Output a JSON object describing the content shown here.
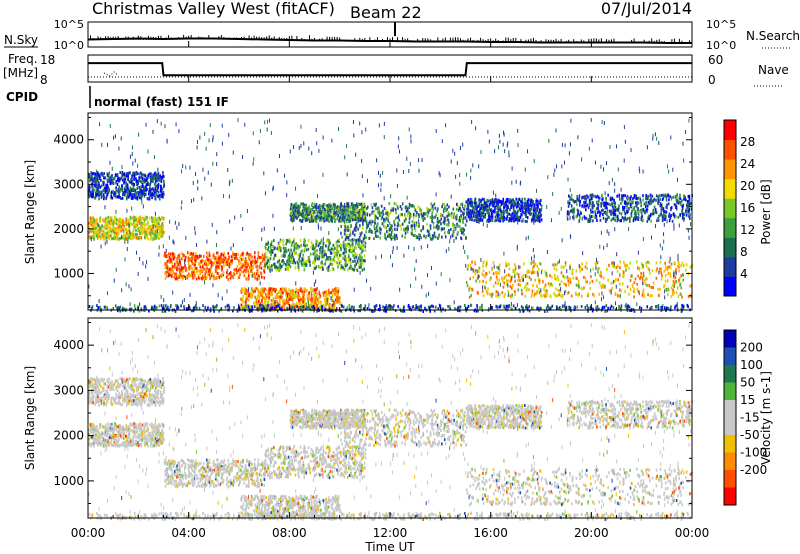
{
  "header": {
    "station": "Christmas Valley West (fitACF)",
    "beam": "Beam 22",
    "date": "07/Jul/2014"
  },
  "labels": {
    "nsky": "N.Sky",
    "nsearch": "N.Search",
    "freq_line1": "Freq.",
    "freq_line2": "[MHz]",
    "nave": "Nave",
    "cpid": "CPID",
    "cpid_value": "normal (fast) 151 IF",
    "noise_tick_hi": "10^5",
    "noise_tick_lo": "10^0",
    "freq_tick_hi": "18",
    "freq_tick_lo": "8",
    "nave_tick_hi": "60",
    "nave_tick_lo": "0"
  },
  "chart_data": [
    {
      "type": "line",
      "panel": "noise",
      "x": [
        0,
        1,
        2,
        3,
        4,
        5,
        6,
        7,
        8,
        9,
        10,
        11,
        12,
        13,
        14,
        15,
        16,
        17,
        18,
        19,
        20,
        21,
        22,
        23,
        24
      ],
      "series": [
        {
          "values": [
            1.5,
            1.6,
            1.7,
            1.6,
            1.7,
            1.7,
            1.6,
            1.5,
            1.4,
            1.3,
            1.3,
            1.2,
            1.2,
            1.1,
            1.1,
            1.1,
            1.0,
            1.0,
            0.9,
            0.9,
            0.9,
            0.9,
            0.9,
            0.8,
            0.8
          ]
        }
      ],
      "ylim": [
        0,
        5
      ]
    },
    {
      "type": "line",
      "panel": "frequency",
      "x": [
        0,
        2.95,
        3.0,
        15.0,
        15.05,
        24
      ],
      "series": [
        {
          "name": "Freq",
          "values": [
            15,
            15,
            10.5,
            10.5,
            15,
            15
          ]
        },
        {
          "name": "Nave",
          "values": [
            4,
            4,
            4,
            4,
            4,
            4
          ]
        }
      ],
      "ylim": [
        8,
        18
      ]
    },
    {
      "type": "heatmap",
      "panel": "power",
      "ylabel": "Slant Range [km]",
      "xlim": [
        0,
        24
      ],
      "ylim": [
        180,
        4600
      ],
      "yticks": [
        1000,
        2000,
        3000,
        4000
      ],
      "colorbar": {
        "label": "Power [dB]",
        "ticks": [
          4,
          8,
          12,
          16,
          20,
          24,
          28
        ]
      }
    },
    {
      "type": "heatmap",
      "panel": "velocity",
      "xlabel": "Time UT",
      "ylabel": "Slant Range [km]",
      "xlim": [
        0,
        24
      ],
      "ylim": [
        180,
        4600
      ],
      "xticks": [
        "00:00",
        "04:00",
        "08:00",
        "12:00",
        "16:00",
        "20:00",
        "00:00"
      ],
      "yticks": [
        1000,
        2000,
        3000,
        4000
      ],
      "colorbar": {
        "label": "Velocity [m s-1]",
        "ticks": [
          200,
          100,
          50,
          15,
          -15,
          -50,
          -100,
          -200
        ]
      }
    }
  ]
}
